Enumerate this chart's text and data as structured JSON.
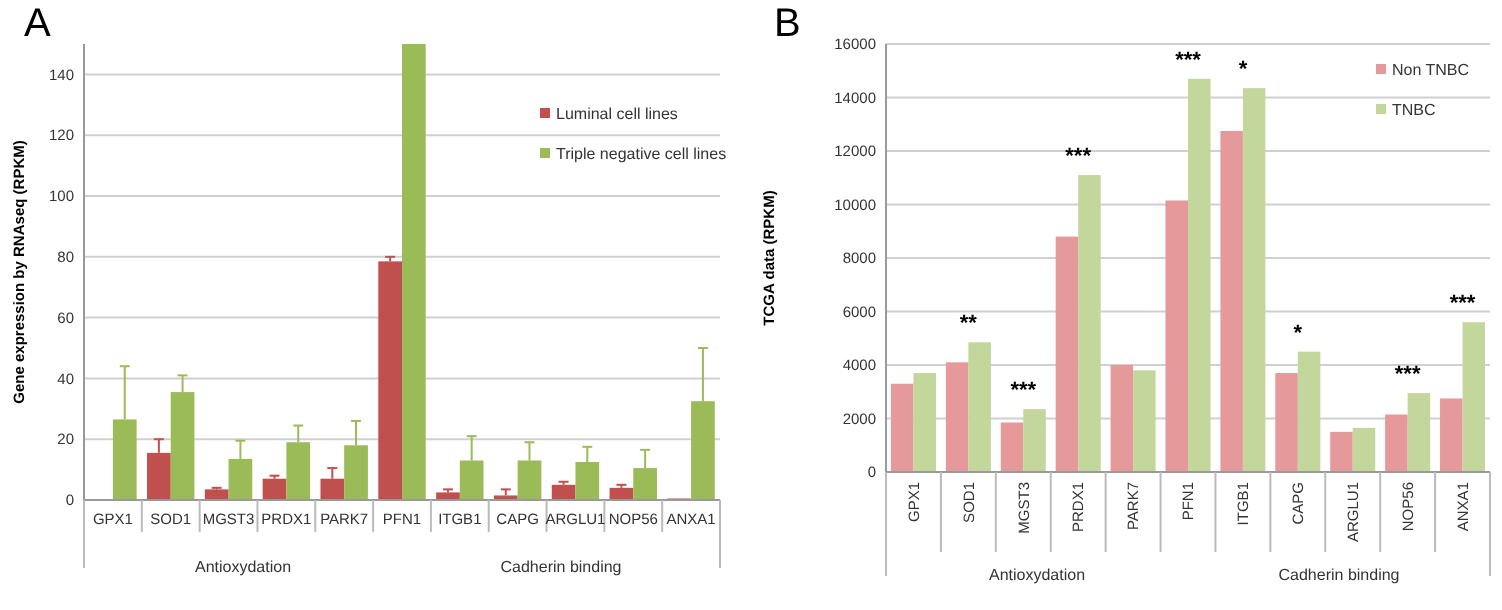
{
  "chart_data": [
    {
      "type": "bar",
      "title": "A",
      "ylabel": "Gene expression by RNAseq (RPKM)",
      "categories": [
        "GPX1",
        "SOD1",
        "MGST3",
        "PRDX1",
        "PARK7",
        "PFN1",
        "ITGB1",
        "CAPG",
        "ARGLU1",
        "NOP56",
        "ANXA1"
      ],
      "series": [
        {
          "name": "Luminal cell lines",
          "color": "#c0504d",
          "values": [
            0,
            15.5,
            3.5,
            7,
            7,
            78.5,
            2.5,
            1.5,
            5,
            4,
            0.5
          ],
          "errors": [
            null,
            [
              15.5,
              20
            ],
            [
              3.5,
              4
            ],
            [
              7,
              8
            ],
            [
              7,
              10.5
            ],
            [
              78.5,
              80
            ],
            [
              2.5,
              3.5
            ],
            [
              1.5,
              3.5
            ],
            [
              5,
              6
            ],
            [
              4,
              5
            ],
            null
          ]
        },
        {
          "name": "Triple negative cell lines",
          "color": "#9bbb59",
          "values": [
            26.5,
            35.5,
            13.5,
            19,
            18,
            150,
            13,
            13,
            12.5,
            10.5,
            32.5
          ],
          "errors": [
            [
              26.5,
              44
            ],
            [
              35.5,
              41
            ],
            [
              13.5,
              19.5
            ],
            [
              19,
              24.5
            ],
            [
              18,
              26
            ],
            null,
            [
              13,
              21
            ],
            [
              13,
              19
            ],
            [
              12.5,
              17.5
            ],
            [
              10.5,
              16.5
            ],
            [
              32.5,
              50
            ]
          ]
        }
      ],
      "ylim": [
        0,
        150
      ],
      "yticks": [
        0,
        20,
        40,
        60,
        80,
        100,
        120,
        140
      ],
      "grid": "y",
      "legend": "right",
      "annotations": [
        "Antioxydation",
        "Cadherin binding"
      ]
    },
    {
      "type": "bar",
      "title": "B",
      "ylabel": "TCGA data (RPKM)",
      "categories": [
        "GPX1",
        "SOD1",
        "MGST3",
        "PRDX1",
        "PARK7",
        "PFN1",
        "ITGB1",
        "CAPG",
        "ARGLU1",
        "NOP56",
        "ANXA1"
      ],
      "series": [
        {
          "name": "Non TNBC",
          "color": "#e6999a",
          "values": [
            3300,
            4100,
            1850,
            8800,
            4000,
            10150,
            12750,
            3700,
            1500,
            2150,
            2750
          ]
        },
        {
          "name": "TNBC",
          "color": "#c3d69b",
          "values": [
            3700,
            4850,
            2350,
            11100,
            3800,
            14700,
            14350,
            4500,
            1650,
            2950,
            5600
          ]
        }
      ],
      "ylim": [
        0,
        16000
      ],
      "yticks": [
        0,
        2000,
        4000,
        6000,
        8000,
        10000,
        12000,
        14000,
        16000
      ],
      "grid": "y",
      "legend": "top right",
      "annotations": [
        "Antioxydation",
        "Cadherin binding",
        {
          "text": "**",
          "x": "SOD1",
          "y": 4850
        },
        {
          "text": "***",
          "x": "MGST3",
          "y": 2350
        },
        {
          "text": "***",
          "x": "PRDX1",
          "y": 11100
        },
        {
          "text": "***",
          "x": "PFN1",
          "y": 14700
        },
        {
          "text": "*",
          "x": "ITGB1",
          "y": 14350
        },
        {
          "text": "*",
          "x": "CAPG",
          "y": 4500
        },
        {
          "text": "***",
          "x": "NOP56",
          "y": 2950
        },
        {
          "text": "***",
          "x": "ANXA1",
          "y": 5600
        }
      ]
    }
  ]
}
